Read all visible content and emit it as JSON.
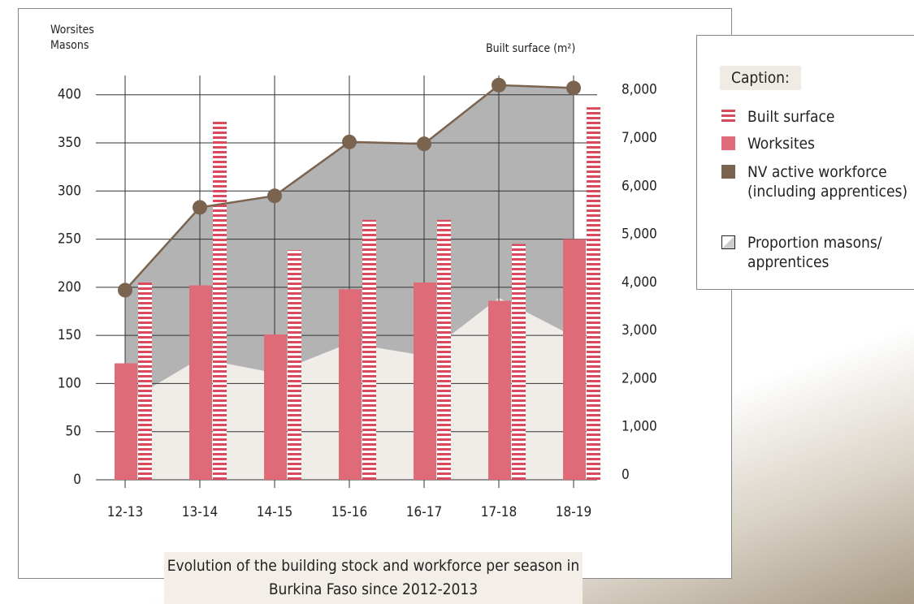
{
  "chart_data": {
    "type": "combo",
    "title": "Evolution of the building stock and workforce per season in Burkina Faso since 2012-2013",
    "y_label": "Worsites Masons",
    "y2_label": "Built surface (m²)",
    "legend_title": "Caption:",
    "categories": [
      "12-13",
      "13-14",
      "14-15",
      "15-16",
      "16-17",
      "17-18",
      "18-19"
    ],
    "series": [
      {
        "name": "Built surface",
        "type": "hatched-bar",
        "axis": "y2",
        "color": "#d84a5c",
        "values": [
          4100,
          7460,
          4770,
          5400,
          5400,
          4900,
          7740
        ]
      },
      {
        "name": "Worksites",
        "type": "bar",
        "color": "#e06b78",
        "values": [
          121,
          202,
          151,
          198,
          205,
          186,
          250
        ]
      },
      {
        "name": "NV active workforce (including apprentices)",
        "type": "line",
        "color": "#7a6450",
        "values": [
          197,
          283,
          295,
          351,
          349,
          410,
          407
        ]
      },
      {
        "name": "Proportion masons/ apprentices",
        "type": "area",
        "color": "#f0ede8",
        "values": [
          80,
          126,
          111,
          142,
          129,
          189,
          149
        ]
      }
    ],
    "ylim": [
      0,
      420
    ],
    "yticks": [
      0,
      50,
      100,
      150,
      200,
      250,
      300,
      350,
      400
    ],
    "y2lim": [
      0,
      8400
    ],
    "y2ticks": [
      0,
      {
        "value": 1000,
        "label": "1,000"
      },
      {
        "value": 2000,
        "label": "2,000"
      },
      {
        "value": 3000,
        "label": "3,000"
      },
      {
        "value": 4000,
        "label": "4,000"
      },
      {
        "value": 5000,
        "label": "5,000"
      },
      {
        "value": 6000,
        "label": "6,000"
      },
      {
        "value": 7000,
        "label": "7,000"
      },
      {
        "value": 8000,
        "label": "8,000"
      }
    ],
    "grid": true
  }
}
